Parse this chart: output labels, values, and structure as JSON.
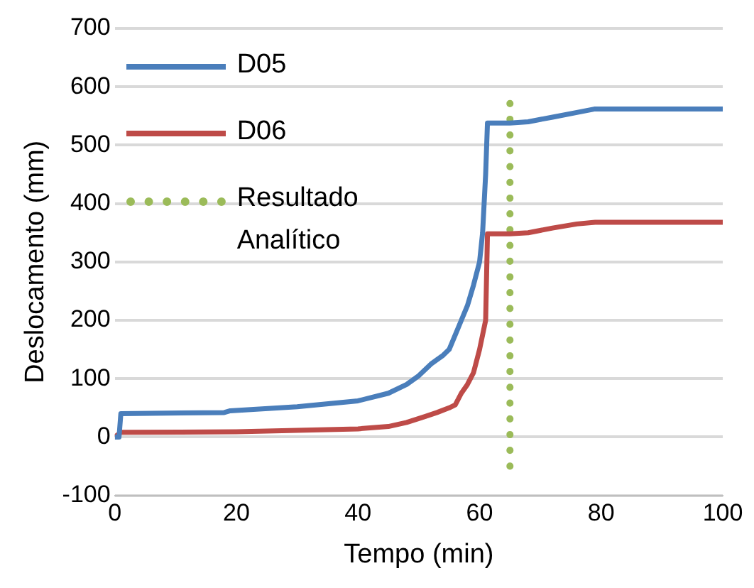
{
  "chart_data": {
    "type": "line",
    "xlabel": "Tempo (min)",
    "ylabel": "Deslocamento (mm)",
    "xlim": [
      0,
      100
    ],
    "xticks": [
      0,
      20,
      40,
      60,
      80,
      100
    ],
    "ylim": [
      -100,
      700
    ],
    "yticks": [
      -100,
      0,
      100,
      200,
      300,
      400,
      500,
      600,
      700
    ],
    "grid": "y",
    "legend": "top left",
    "marker": "none",
    "series": [
      {
        "name": "D05",
        "color": "#4a7ebb",
        "line_style": "solid",
        "x": [
          0,
          0.7,
          1,
          18,
          19,
          30,
          40,
          45,
          48,
          50,
          52,
          54,
          55,
          56,
          57,
          58,
          59,
          60,
          60.5,
          61,
          61.3,
          65,
          68,
          72,
          76,
          79,
          100
        ],
        "values": [
          0,
          0,
          40,
          42,
          45,
          52,
          62,
          75,
          90,
          105,
          125,
          140,
          150,
          175,
          200,
          225,
          260,
          300,
          350,
          450,
          538,
          538,
          540,
          548,
          556,
          562,
          562
        ]
      },
      {
        "name": "D06",
        "color": "#be4b48",
        "line_style": "solid",
        "x": [
          0,
          1,
          20,
          40,
          45,
          48,
          51,
          53,
          55,
          56,
          57,
          58,
          59,
          60,
          61,
          61.3,
          65,
          68,
          72,
          76,
          79,
          100
        ],
        "values": [
          0,
          8,
          9,
          14,
          18,
          25,
          35,
          42,
          50,
          55,
          75,
          90,
          110,
          150,
          200,
          348,
          348,
          350,
          358,
          365,
          368,
          368
        ]
      },
      {
        "name": "Resultado Analítico",
        "color": "#9bbb59",
        "line_style": "dotted",
        "x": [
          65,
          65
        ],
        "values": [
          -50,
          575
        ]
      }
    ]
  }
}
